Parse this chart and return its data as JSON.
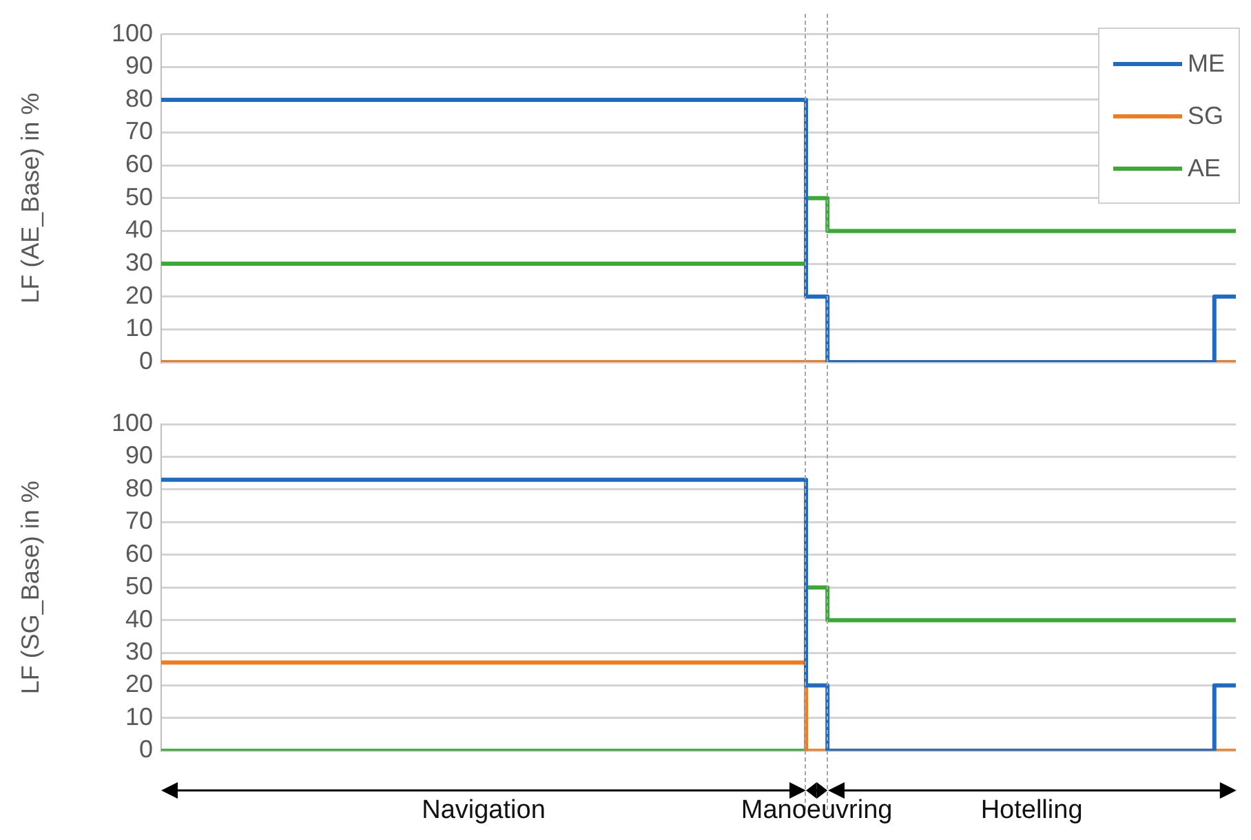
{
  "chart_data": [
    {
      "type": "step",
      "ylabel": "LF (AE_Base) in %",
      "ylim": [
        0,
        100
      ],
      "yticks": [
        0,
        10,
        20,
        30,
        40,
        50,
        60,
        70,
        80,
        90,
        100
      ],
      "grid": "y",
      "legend": "top right",
      "tick_labels": "y",
      "categories": [
        null,
        null,
        null,
        null,
        null,
        null,
        null,
        null,
        null,
        null,
        null,
        null,
        null,
        null,
        null,
        null,
        null,
        null,
        null,
        null,
        null,
        null,
        null,
        null,
        null,
        null,
        null,
        null,
        null,
        null,
        null,
        null,
        null,
        null,
        null,
        null,
        null,
        null,
        null,
        null,
        null,
        null,
        null,
        null,
        null,
        null,
        null,
        null,
        null,
        null,
        null
      ],
      "series": [
        {
          "name": "ME",
          "color": "#1f6bc4",
          "values": [
            80,
            80,
            80,
            80,
            80,
            80,
            80,
            80,
            80,
            80,
            80,
            80,
            80,
            80,
            80,
            80,
            80,
            80,
            80,
            80,
            80,
            80,
            80,
            80,
            80,
            80,
            80,
            80,
            80,
            80,
            20,
            0,
            0,
            0,
            0,
            0,
            0,
            0,
            0,
            0,
            0,
            0,
            0,
            0,
            0,
            0,
            0,
            0,
            0,
            20,
            20
          ]
        },
        {
          "name": "SG",
          "color": "#f47a20",
          "values": [
            0,
            0,
            0,
            0,
            0,
            0,
            0,
            0,
            0,
            0,
            0,
            0,
            0,
            0,
            0,
            0,
            0,
            0,
            0,
            0,
            0,
            0,
            0,
            0,
            0,
            0,
            0,
            0,
            0,
            0,
            0,
            0,
            0,
            0,
            0,
            0,
            0,
            0,
            0,
            0,
            0,
            0,
            0,
            0,
            0,
            0,
            0,
            0,
            0,
            0,
            0
          ]
        },
        {
          "name": "AE",
          "color": "#3aa935",
          "values": [
            30,
            30,
            30,
            30,
            30,
            30,
            30,
            30,
            30,
            30,
            30,
            30,
            30,
            30,
            30,
            30,
            30,
            30,
            30,
            30,
            30,
            30,
            30,
            30,
            30,
            30,
            30,
            30,
            30,
            30,
            50,
            40,
            40,
            40,
            40,
            40,
            40,
            40,
            40,
            40,
            40,
            40,
            40,
            40,
            40,
            40,
            40,
            40,
            40,
            40,
            40
          ]
        }
      ]
    },
    {
      "type": "step",
      "ylabel": "LF (SG_Base) in %",
      "ylim": [
        0,
        100
      ],
      "yticks": [
        0,
        10,
        20,
        30,
        40,
        50,
        60,
        70,
        80,
        90,
        100
      ],
      "grid": "y",
      "tick_labels": "y",
      "categories": [
        null,
        null,
        null,
        null,
        null,
        null,
        null,
        null,
        null,
        null,
        null,
        null,
        null,
        null,
        null,
        null,
        null,
        null,
        null,
        null,
        null,
        null,
        null,
        null,
        null,
        null,
        null,
        null,
        null,
        null,
        null,
        null,
        null,
        null,
        null,
        null,
        null,
        null,
        null,
        null,
        null,
        null,
        null,
        null,
        null,
        null,
        null,
        null,
        null,
        null,
        null
      ],
      "annotations": [
        "Navigation",
        "Manoeuvring",
        "Hotelling"
      ],
      "series": [
        {
          "color": "#1f6bc4",
          "values": [
            83,
            83,
            83,
            83,
            83,
            83,
            83,
            83,
            83,
            83,
            83,
            83,
            83,
            83,
            83,
            83,
            83,
            83,
            83,
            83,
            83,
            83,
            83,
            83,
            83,
            83,
            83,
            83,
            83,
            83,
            20,
            0,
            0,
            0,
            0,
            0,
            0,
            0,
            0,
            0,
            0,
            0,
            0,
            0,
            0,
            0,
            0,
            0,
            0,
            20,
            20
          ]
        },
        {
          "color": "#f47a20",
          "values": [
            27,
            27,
            27,
            27,
            27,
            27,
            27,
            27,
            27,
            27,
            27,
            27,
            27,
            27,
            27,
            27,
            27,
            27,
            27,
            27,
            27,
            27,
            27,
            27,
            27,
            27,
            27,
            27,
            27,
            27,
            0,
            0,
            0,
            0,
            0,
            0,
            0,
            0,
            0,
            0,
            0,
            0,
            0,
            0,
            0,
            0,
            0,
            0,
            0,
            0,
            0
          ]
        },
        {
          "color": "#3aa935",
          "values": [
            0,
            0,
            0,
            0,
            0,
            0,
            0,
            0,
            0,
            0,
            0,
            0,
            0,
            0,
            0,
            0,
            0,
            0,
            0,
            0,
            0,
            0,
            0,
            0,
            0,
            0,
            0,
            0,
            0,
            0,
            50,
            40,
            40,
            40,
            40,
            40,
            40,
            40,
            40,
            40,
            40,
            40,
            40,
            40,
            40,
            40,
            40,
            40,
            40,
            40,
            40
          ]
        }
      ]
    }
  ]
}
